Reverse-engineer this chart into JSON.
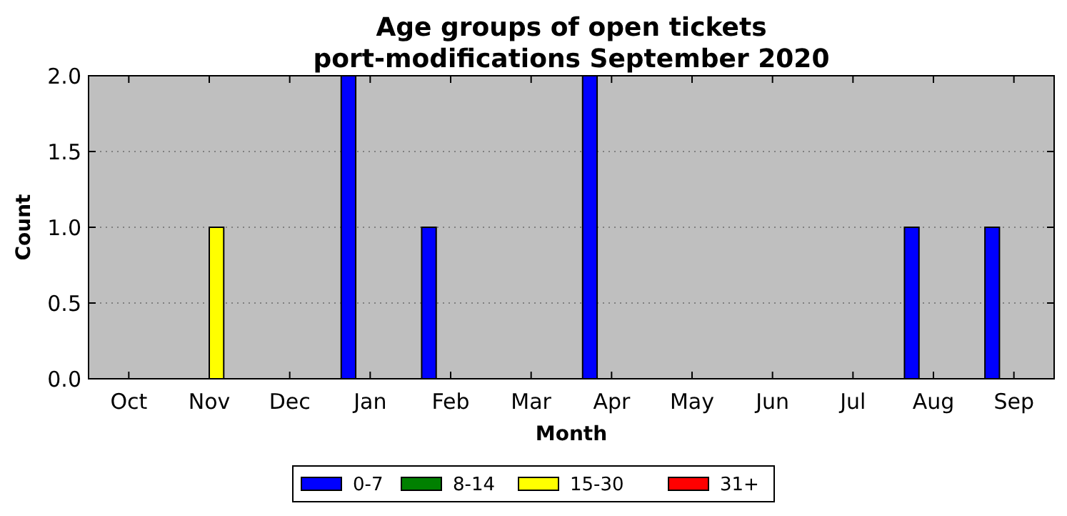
{
  "chart_data": {
    "type": "bar",
    "title": "Age groups of open tickets",
    "subtitle": "port-modifications September 2020",
    "xlabel": "Month",
    "ylabel": "Count",
    "categories": [
      "Oct",
      "Nov",
      "Dec",
      "Jan",
      "Feb",
      "Mar",
      "Apr",
      "May",
      "Jun",
      "Jul",
      "Aug",
      "Sep"
    ],
    "series": [
      {
        "name": "0-7",
        "color": "#0000ff",
        "values": [
          0,
          0,
          0,
          2,
          1,
          0,
          2,
          0,
          0,
          0,
          1,
          1
        ]
      },
      {
        "name": "8-14",
        "color": "#008000",
        "values": [
          0,
          0,
          0,
          0,
          0,
          0,
          0,
          0,
          0,
          0,
          0,
          0
        ]
      },
      {
        "name": "15-30",
        "color": "#ffff00",
        "values": [
          0,
          1,
          0,
          0,
          0,
          0,
          0,
          0,
          0,
          0,
          0,
          0
        ]
      },
      {
        "name": "31+",
        "color": "#ff0000",
        "values": [
          0,
          0,
          0,
          0,
          0,
          0,
          0,
          0,
          0,
          0,
          0,
          0
        ]
      }
    ],
    "ylim": [
      0,
      2
    ],
    "yticks": [
      {
        "value": 0,
        "label": "0.0"
      },
      {
        "value": 0.5,
        "label": "0.5"
      },
      {
        "value": 1,
        "label": "1.0"
      },
      {
        "value": 1.5,
        "label": "1.5"
      },
      {
        "value": 2,
        "label": "2.0"
      }
    ],
    "grid": "y",
    "legend": "bottom"
  }
}
